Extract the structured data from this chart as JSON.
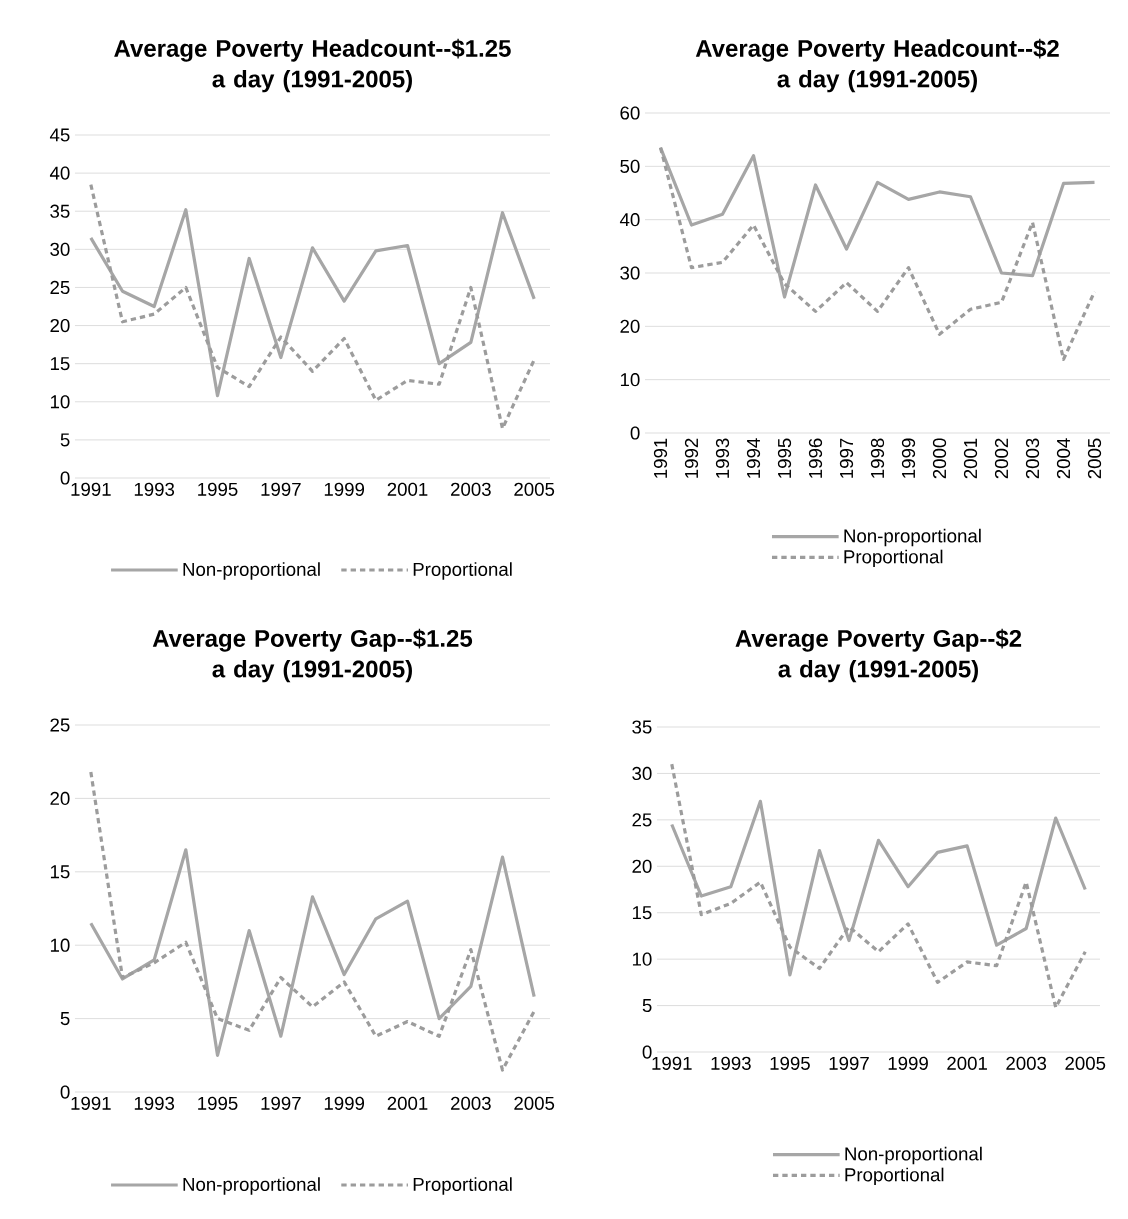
{
  "chart_data": [
    {
      "type": "line",
      "title": "Average Poverty Headcount--$1.25 a day (1991-2005)",
      "categories": [
        "1991",
        null,
        "1993",
        null,
        "1995",
        null,
        "1997",
        null,
        "1999",
        null,
        "2001",
        null,
        "2003",
        null,
        "2005"
      ],
      "ylim": [
        0,
        45
      ],
      "yticks": [
        0,
        5,
        10,
        15,
        20,
        25,
        30,
        35,
        40,
        45
      ],
      "grid": "y",
      "legend": "bottom",
      "series": [
        {
          "name": "Non-proportional",
          "color": "#a6a6a6",
          "line_style": "solid",
          "values": [
            31.5,
            24.5,
            22.5,
            35.2,
            10.8,
            28.8,
            15.8,
            30.2,
            23.2,
            29.8,
            30.5,
            15,
            17.8,
            34.8,
            23.5
          ]
        },
        {
          "name": "Proportional",
          "color": "#9c9c9c",
          "line_style": "dashed",
          "values": [
            38.5,
            20.5,
            21.5,
            25,
            14.5,
            12,
            18.5,
            14,
            18.3,
            10.2,
            12.8,
            12.3,
            25,
            6.5,
            15.5
          ]
        }
      ]
    },
    {
      "type": "line",
      "title": "Average Poverty Headcount--$2 a day (1991-2005)",
      "categories": [
        "1991",
        "1992",
        "1993",
        "1994",
        "1995",
        "1996",
        "1997",
        "1998",
        "1999",
        "2000",
        "2001",
        "2002",
        "2003",
        "2004",
        "2005"
      ],
      "ylim": [
        0,
        60
      ],
      "yticks": [
        0,
        10,
        20,
        30,
        40,
        50,
        60
      ],
      "grid": "y",
      "legend": "bottom",
      "series": [
        {
          "name": "Non-proportional",
          "color": "#a6a6a6",
          "line_style": "solid",
          "values": [
            53.5,
            39,
            41,
            52,
            25.5,
            46.5,
            34.5,
            47,
            43.8,
            45.2,
            44.3,
            30,
            29.5,
            46.8,
            47
          ]
        },
        {
          "name": "Proportional",
          "color": "#9c9c9c",
          "line_style": "dashed",
          "values": [
            53.5,
            31,
            32,
            39,
            28,
            22.8,
            28.2,
            22.8,
            31,
            18.5,
            23.2,
            24.5,
            39.5,
            13.8,
            26.5
          ]
        }
      ]
    },
    {
      "type": "line",
      "title": "Average Poverty Gap--$1.25 a day (1991-2005)",
      "categories": [
        "1991",
        null,
        "1993",
        null,
        "1995",
        null,
        "1997",
        null,
        "1999",
        null,
        "2001",
        null,
        "2003",
        null,
        "2005"
      ],
      "ylim": [
        0,
        25
      ],
      "yticks": [
        0,
        5,
        10,
        15,
        20,
        25
      ],
      "grid": "y",
      "legend": "bottom",
      "series": [
        {
          "name": "Non-proportional",
          "color": "#a6a6a6",
          "line_style": "solid",
          "values": [
            11.5,
            7.7,
            9,
            16.5,
            2.5,
            11,
            3.8,
            13.3,
            8,
            11.8,
            13,
            5,
            7.2,
            16,
            6.5
          ]
        },
        {
          "name": "Proportional",
          "color": "#9c9c9c",
          "line_style": "dashed",
          "values": [
            21.8,
            7.8,
            8.8,
            10.2,
            5,
            4.2,
            7.8,
            5.8,
            7.5,
            3.8,
            4.8,
            3.8,
            9.7,
            1.5,
            5.5
          ]
        }
      ]
    },
    {
      "type": "line",
      "title": "Average Poverty Gap--$2 a day (1991-2005)",
      "categories": [
        "1991",
        null,
        "1993",
        null,
        "1995",
        null,
        "1997",
        null,
        "1999",
        null,
        "2001",
        null,
        "2003",
        null,
        "2005"
      ],
      "ylim": [
        0,
        35
      ],
      "yticks": [
        0,
        5,
        10,
        15,
        20,
        25,
        30,
        35
      ],
      "grid": "y",
      "legend": "bottom",
      "series": [
        {
          "name": "Non-proportional",
          "color": "#a6a6a6",
          "line_style": "solid",
          "values": [
            24.5,
            16.8,
            17.8,
            27,
            8.3,
            21.7,
            12,
            22.8,
            17.8,
            21.5,
            22.2,
            11.5,
            13.3,
            25.2,
            17.5
          ]
        },
        {
          "name": "Proportional",
          "color": "#9c9c9c",
          "line_style": "dashed",
          "values": [
            31,
            14.8,
            16,
            18.3,
            11.3,
            9,
            13.5,
            10.8,
            13.8,
            7.5,
            9.7,
            9.3,
            18.3,
            4.8,
            10.8
          ]
        }
      ]
    }
  ]
}
